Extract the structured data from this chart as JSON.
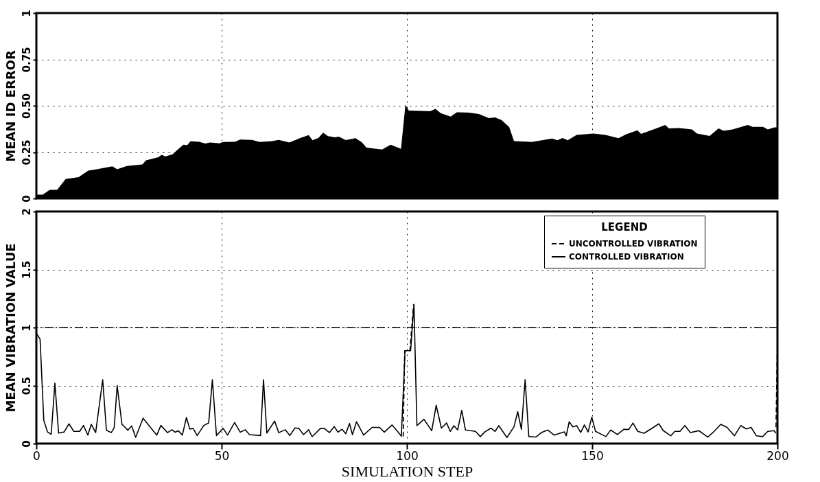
{
  "chart_data": [
    {
      "type": "area",
      "ylabel": "MEAN ID ERROR",
      "color": "#000000",
      "xlim": [
        0,
        200
      ],
      "xticks": [
        0,
        50,
        100,
        150,
        200
      ],
      "ylim": [
        0,
        1
      ],
      "yticks": [
        0,
        0.25,
        {
          "value": 0.5,
          "label": "0.50"
        },
        0.75,
        1
      ],
      "grid": true,
      "tick_labels": "y",
      "x": [
        0,
        1.7,
        3.6,
        5.6,
        7.9,
        11.4,
        14,
        16.3,
        20.5,
        21.8,
        24.4,
        28.6,
        29.6,
        32.9,
        33.8,
        34.8,
        36.8,
        38,
        39.7,
        40.7,
        41.6,
        43.9,
        45.6,
        46.9,
        49.4,
        50.4,
        53.6,
        55,
        58.2,
        60.2,
        63.4,
        65.4,
        68.3,
        71.2,
        73.5,
        74.5,
        76.1,
        77.4,
        78.7,
        80.6,
        81.6,
        83.5,
        86.1,
        87.8,
        89.1,
        93.3,
        95.6,
        98.4,
        99.6,
        100.5,
        106.3,
        107.7,
        109.1,
        111.8,
        113.5,
        116.6,
        119.4,
        122.1,
        123.8,
        125.5,
        127.6,
        128.9,
        133.7,
        139.2,
        140.6,
        142,
        143.4,
        145.8,
        150.3,
        153.6,
        157.1,
        159.1,
        162.2,
        163.2,
        167.3,
        169.7,
        170.7,
        173.5,
        176.9,
        178.3,
        181.7,
        184.1,
        185.5,
        187.9,
        192,
        193.3,
        196.1,
        197.4,
        199.2,
        200
      ],
      "values": [
        0.02,
        0.02,
        0.046,
        0.046,
        0.105,
        0.115,
        0.15,
        0.157,
        0.173,
        0.157,
        0.175,
        0.183,
        0.206,
        0.222,
        0.235,
        0.227,
        0.238,
        0.261,
        0.29,
        0.287,
        0.308,
        0.306,
        0.296,
        0.302,
        0.297,
        0.305,
        0.306,
        0.318,
        0.316,
        0.305,
        0.308,
        0.316,
        0.302,
        0.326,
        0.342,
        0.314,
        0.326,
        0.355,
        0.336,
        0.33,
        0.333,
        0.315,
        0.325,
        0.304,
        0.274,
        0.264,
        0.29,
        0.268,
        0.505,
        0.474,
        0.47,
        0.483,
        0.46,
        0.442,
        0.465,
        0.463,
        0.456,
        0.433,
        0.437,
        0.423,
        0.385,
        0.309,
        0.305,
        0.323,
        0.314,
        0.326,
        0.314,
        0.343,
        0.35,
        0.343,
        0.325,
        0.345,
        0.368,
        0.348,
        0.378,
        0.396,
        0.378,
        0.38,
        0.372,
        0.35,
        0.337,
        0.378,
        0.365,
        0.372,
        0.396,
        0.386,
        0.386,
        0.372,
        0.383,
        0.383
      ]
    },
    {
      "type": "line",
      "xlabel": "SIMULATION STEP",
      "ylabel": "MEAN VIBRATION VALUE",
      "legend_title": "LEGEND",
      "legend": "top right",
      "xlim": [
        0,
        200
      ],
      "xticks": [
        0,
        50,
        100,
        150,
        200
      ],
      "ylim": [
        0,
        2
      ],
      "yticks": [
        0,
        0.5,
        1,
        1.5,
        2
      ],
      "grid": true,
      "ref_lines": [
        {
          "axis": "y",
          "value": 1,
          "line_style": "dashed"
        }
      ],
      "series": [
        {
          "name": "UNCONTROLLED VIBRATION",
          "color": "#000000",
          "line_style": "dashed",
          "x": [
            99,
            99.4,
            100.8,
            101.8,
            150,
            199.6,
            200
          ],
          "values": [
            0.06,
            0.8,
            0.8,
            1.2,
            null,
            0.14,
            0.9
          ]
        },
        {
          "name": "CONTROLLED VIBRATION",
          "color": "#000000",
          "line_style": "solid",
          "x": [
            0,
            1,
            2,
            3,
            4,
            5,
            6,
            7.5,
            8.8,
            10.1,
            11.7,
            12.7,
            13.9,
            14.8,
            16,
            17.9,
            18.9,
            20.2,
            21,
            21.8,
            23.1,
            24.7,
            25.7,
            26.8,
            28.8,
            30.9,
            32.5,
            33.6,
            35.4,
            36.6,
            37.4,
            38.3,
            39.4,
            40.5,
            41.4,
            42.3,
            43.4,
            45.2,
            46.5,
            47.5,
            48.6,
            50.4,
            51.6,
            53.5,
            55,
            56.4,
            57.5,
            60.5,
            61.3,
            62.2,
            64.3,
            65.4,
            67.2,
            68.4,
            69.8,
            70.8,
            72.1,
            73.5,
            74.4,
            76.7,
            77.7,
            79.1,
            80.4,
            81.4,
            82.5,
            83.5,
            84.5,
            85.3,
            86.4,
            88.3,
            90.6,
            92.6,
            93.9,
            96,
            97.2,
            98.5,
            99.5,
            101,
            101.9,
            102.7,
            104.6,
            106.7,
            107.9,
            109.3,
            110.7,
            111.7,
            112.7,
            113.7,
            114.8,
            115.8,
            118.5,
            119.8,
            121,
            122.7,
            123.8,
            124.8,
            127,
            128.9,
            129.9,
            130.9,
            131.9,
            132.9,
            134.8,
            136.3,
            138,
            139.7,
            142.5,
            143,
            143.8,
            144.8,
            145.8,
            146.9,
            147.9,
            148.9,
            149.9,
            150.9,
            153.7,
            155,
            156.8,
            158.5,
            159.9,
            161,
            162.3,
            164,
            166.5,
            168,
            169.2,
            171.2,
            172.3,
            173.7,
            175,
            176.5,
            178.8,
            181.2,
            182.6,
            184.7,
            186.4,
            188.4,
            190.1,
            191.6,
            192.9,
            194.3,
            196,
            197.4,
            199.1,
            199.6
          ],
          "values": [
            0.95,
            0.9,
            0.2,
            0.1,
            0.08,
            0.52,
            0.09,
            0.1,
            0.17,
            0.105,
            0.105,
            0.156,
            0.073,
            0.166,
            0.094,
            0.55,
            0.115,
            0.094,
            0.135,
            0.5,
            0.166,
            0.115,
            0.152,
            0.053,
            0.219,
            0.135,
            0.073,
            0.156,
            0.094,
            0.119,
            0.098,
            0.11,
            0.073,
            0.225,
            0.125,
            0.131,
            0.069,
            0.156,
            0.177,
            0.55,
            0.069,
            0.131,
            0.073,
            0.181,
            0.098,
            0.119,
            0.077,
            0.069,
            0.55,
            0.09,
            0.194,
            0.094,
            0.119,
            0.069,
            0.135,
            0.131,
            0.077,
            0.119,
            0.059,
            0.131,
            0.131,
            0.094,
            0.146,
            0.098,
            0.123,
            0.085,
            0.173,
            0.077,
            0.188,
            0.073,
            0.139,
            0.139,
            0.098,
            0.16,
            0.115,
            0.063,
            0.8,
            0.8,
            1.2,
            0.155,
            0.209,
            0.11,
            0.33,
            0.133,
            0.177,
            0.105,
            0.154,
            0.117,
            0.286,
            0.117,
            0.105,
            0.06,
            0.1,
            0.133,
            0.105,
            0.154,
            0.052,
            0.144,
            0.275,
            0.122,
            0.55,
            0.06,
            0.056,
            0.095,
            0.117,
            0.073,
            0.1,
            0.067,
            0.188,
            0.144,
            0.155,
            0.095,
            0.161,
            0.1,
            0.227,
            0.105,
            0.06,
            0.117,
            0.078,
            0.122,
            0.122,
            0.177,
            0.105,
            0.089,
            0.139,
            0.17,
            0.111,
            0.067,
            0.105,
            0.105,
            0.155,
            0.095,
            0.111,
            0.056,
            0.095,
            0.166,
            0.139,
            0.067,
            0.155,
            0.126,
            0.139,
            0.067,
            0.06,
            0.105,
            0.111,
            0.089
          ]
        }
      ]
    }
  ]
}
